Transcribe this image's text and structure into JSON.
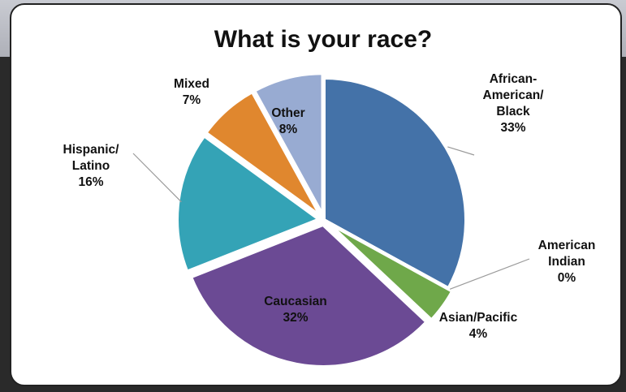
{
  "chart_data": {
    "type": "pie",
    "title": "What is your race?",
    "slices": [
      {
        "label": [
          "African-",
          "American/",
          "Black"
        ],
        "value": 33,
        "display": "33%",
        "color": "#4472a8"
      },
      {
        "label": [
          "American",
          "Indian"
        ],
        "value": 0,
        "display": "0%",
        "color": "#8b3b3b"
      },
      {
        "label": [
          "Asian/Pacific"
        ],
        "value": 4,
        "display": "4%",
        "color": "#6fa84a"
      },
      {
        "label": [
          "Caucasian"
        ],
        "value": 32,
        "display": "32%",
        "color": "#6b4a94"
      },
      {
        "label": [
          "Hispanic/",
          "Latino"
        ],
        "value": 16,
        "display": "16%",
        "color": "#34a3b6"
      },
      {
        "label": [
          "Mixed"
        ],
        "value": 7,
        "display": "7%",
        "color": "#e0872e"
      },
      {
        "label": [
          "Other"
        ],
        "value": 8,
        "display": "8%",
        "color": "#98abd2"
      }
    ]
  }
}
